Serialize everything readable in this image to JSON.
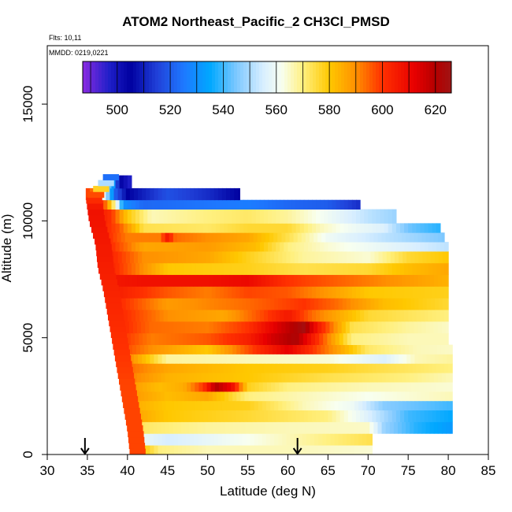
{
  "chart_data": {
    "type": "heatmap",
    "title": "ATOM2 Northeast_Pacific_2 CH3Cl_PMSD",
    "flights_label": "Flts: 10,11",
    "mmdd_label": "MMDD: 0219,0221",
    "xlabel": "Latitude (deg N)",
    "ylabel": "Altitude (m)",
    "xlim": [
      30,
      85
    ],
    "ylim": [
      0,
      17500
    ],
    "xticks": [
      30,
      35,
      40,
      45,
      50,
      55,
      60,
      65,
      70,
      75,
      80,
      85
    ],
    "yticks": [
      0,
      5000,
      10000,
      15000
    ],
    "colorbar": {
      "range": [
        487,
        626
      ],
      "ticks": [
        500,
        520,
        540,
        560,
        580,
        600,
        620
      ],
      "stops": [
        {
          "v": 487,
          "c": "#8a2be2"
        },
        {
          "v": 497,
          "c": "#1f1fc8"
        },
        {
          "v": 505,
          "c": "#0000a0"
        },
        {
          "v": 515,
          "c": "#2040d8"
        },
        {
          "v": 525,
          "c": "#1e78ff"
        },
        {
          "v": 535,
          "c": "#00a8ff"
        },
        {
          "v": 545,
          "c": "#7ec8ff"
        },
        {
          "v": 555,
          "c": "#d8eeff"
        },
        {
          "v": 562,
          "c": "#f8fff0"
        },
        {
          "v": 570,
          "c": "#fff080"
        },
        {
          "v": 580,
          "c": "#ffc800"
        },
        {
          "v": 590,
          "c": "#ff9000"
        },
        {
          "v": 600,
          "c": "#ff3000"
        },
        {
          "v": 612,
          "c": "#e80000"
        },
        {
          "v": 620,
          "c": "#b40000"
        },
        {
          "v": 626,
          "c": "#a01414"
        }
      ]
    },
    "edge": [
      [
        0,
        40.3
      ],
      [
        1000,
        40.0
      ],
      [
        2000,
        39.5
      ],
      [
        3000,
        39.0
      ],
      [
        4000,
        38.5
      ],
      [
        5000,
        38.0
      ],
      [
        6000,
        37.5
      ],
      [
        7000,
        37.0
      ],
      [
        8000,
        36.3
      ],
      [
        9000,
        36.0
      ],
      [
        10000,
        35.2
      ],
      [
        11000,
        34.8
      ],
      [
        11900,
        37.0
      ]
    ],
    "edge_values": [
      [
        0,
        598
      ],
      [
        3000,
        598
      ],
      [
        6000,
        602
      ],
      [
        9000,
        606
      ],
      [
        10500,
        608
      ],
      [
        11200,
        596
      ],
      [
        12000,
        510
      ]
    ],
    "bands": [
      {
        "y0": 0,
        "y1": 400,
        "x1": 70.5,
        "v": [
          [
            40.3,
            598
          ],
          [
            41,
            585
          ],
          [
            44,
            570
          ],
          [
            50,
            566
          ],
          [
            60,
            566
          ],
          [
            70.5,
            564
          ]
        ]
      },
      {
        "y0": 400,
        "y1": 900,
        "x1": 70.5,
        "v": [
          [
            40.3,
            598
          ],
          [
            41,
            560
          ],
          [
            45,
            555
          ],
          [
            55,
            562
          ],
          [
            65,
            570
          ],
          [
            70.5,
            574
          ]
        ]
      },
      {
        "y0": 900,
        "y1": 1400,
        "x1": 80.5,
        "v": [
          [
            40.2,
            592
          ],
          [
            42,
            572
          ],
          [
            50,
            568
          ],
          [
            60,
            566
          ],
          [
            70,
            565
          ],
          [
            72,
            548
          ],
          [
            76,
            538
          ],
          [
            80.5,
            532
          ]
        ]
      },
      {
        "y0": 1400,
        "y1": 1900,
        "x1": 80.5,
        "v": [
          [
            40.0,
            588
          ],
          [
            45,
            580
          ],
          [
            55,
            576
          ],
          [
            65,
            570
          ],
          [
            70,
            556
          ],
          [
            75,
            540
          ],
          [
            80.5,
            535
          ]
        ]
      },
      {
        "y0": 1900,
        "y1": 2300,
        "x1": 80.5,
        "v": [
          [
            39.8,
            586
          ],
          [
            45,
            580
          ],
          [
            55,
            578
          ],
          [
            62,
            566
          ],
          [
            68,
            560
          ],
          [
            72,
            546
          ],
          [
            80.5,
            540
          ]
        ]
      },
      {
        "y0": 2300,
        "y1": 2700,
        "x1": 80.5,
        "v": [
          [
            39.6,
            590
          ],
          [
            45,
            582
          ],
          [
            50,
            586
          ],
          [
            55,
            570
          ],
          [
            62,
            566
          ],
          [
            70,
            562
          ],
          [
            80.5,
            566
          ]
        ]
      },
      {
        "y0": 2700,
        "y1": 3100,
        "x1": 80.5,
        "v": [
          [
            39.4,
            590
          ],
          [
            44,
            582
          ],
          [
            47,
            585
          ],
          [
            49.5,
            600
          ],
          [
            51,
            620
          ],
          [
            53,
            610
          ],
          [
            55,
            578
          ],
          [
            60,
            570
          ],
          [
            70,
            566
          ],
          [
            80.5,
            564
          ]
        ]
      },
      {
        "y0": 3100,
        "y1": 3500,
        "x1": 80.5,
        "v": [
          [
            39.2,
            594
          ],
          [
            45,
            584
          ],
          [
            55,
            580
          ],
          [
            65,
            574
          ],
          [
            75,
            570
          ],
          [
            80.5,
            566
          ]
        ]
      },
      {
        "y0": 3500,
        "y1": 3900,
        "x1": 80.5,
        "v": [
          [
            39.0,
            596
          ],
          [
            45,
            586
          ],
          [
            55,
            580
          ],
          [
            65,
            578
          ],
          [
            72,
            574
          ],
          [
            80.5,
            570
          ]
        ]
      },
      {
        "y0": 3900,
        "y1": 4300,
        "x1": 80.5,
        "v": [
          [
            38.8,
            598
          ],
          [
            45,
            568
          ],
          [
            55,
            566
          ],
          [
            65,
            564
          ],
          [
            72,
            556
          ],
          [
            76,
            566
          ],
          [
            80.5,
            568
          ]
        ]
      },
      {
        "y0": 4300,
        "y1": 4700,
        "x1": 80.5,
        "v": [
          [
            38.6,
            600
          ],
          [
            43,
            590
          ],
          [
            50,
            580
          ],
          [
            56,
            600
          ],
          [
            60,
            612
          ],
          [
            64,
            596
          ],
          [
            70,
            572
          ],
          [
            76,
            566
          ],
          [
            80.5,
            565
          ]
        ]
      },
      {
        "y0": 4700,
        "y1": 5200,
        "x1": 80,
        "v": [
          [
            38.4,
            602
          ],
          [
            43,
            592
          ],
          [
            50,
            596
          ],
          [
            55,
            604
          ],
          [
            58,
            615
          ],
          [
            61,
            622
          ],
          [
            63,
            606
          ],
          [
            68,
            570
          ],
          [
            75,
            566
          ],
          [
            80,
            566
          ]
        ]
      },
      {
        "y0": 5200,
        "y1": 5700,
        "x1": 80,
        "v": [
          [
            38.2,
            604
          ],
          [
            43,
            594
          ],
          [
            50,
            592
          ],
          [
            55,
            600
          ],
          [
            59,
            615
          ],
          [
            62,
            624
          ],
          [
            64,
            604
          ],
          [
            68,
            574
          ],
          [
            75,
            568
          ],
          [
            80,
            565
          ]
        ]
      },
      {
        "y0": 5700,
        "y1": 6200,
        "x1": 80,
        "v": [
          [
            38.0,
            604
          ],
          [
            45,
            590
          ],
          [
            52,
            586
          ],
          [
            57,
            598
          ],
          [
            60,
            606
          ],
          [
            63,
            594
          ],
          [
            70,
            576
          ],
          [
            80,
            570
          ]
        ]
      },
      {
        "y0": 6200,
        "y1": 6700,
        "x1": 80,
        "v": [
          [
            37.8,
            604
          ],
          [
            45,
            588
          ],
          [
            55,
            594
          ],
          [
            62,
            600
          ],
          [
            66,
            594
          ],
          [
            72,
            582
          ],
          [
            80,
            576
          ]
        ]
      },
      {
        "y0": 6700,
        "y1": 7200,
        "x1": 80,
        "v": [
          [
            37.5,
            606
          ],
          [
            42,
            600
          ],
          [
            45,
            596
          ],
          [
            50,
            592
          ],
          [
            55,
            598
          ],
          [
            60,
            596
          ],
          [
            64,
            590
          ],
          [
            70,
            580
          ],
          [
            80,
            578
          ]
        ]
      },
      {
        "y0": 7200,
        "y1": 7700,
        "x1": 80,
        "v": [
          [
            37.2,
            606
          ],
          [
            42,
            608
          ],
          [
            50,
            608
          ],
          [
            55,
            610
          ],
          [
            60,
            600
          ],
          [
            65,
            596
          ],
          [
            70,
            592
          ],
          [
            80,
            584
          ]
        ]
      },
      {
        "y0": 7700,
        "y1": 8200,
        "x1": 80,
        "v": [
          [
            37.0,
            606
          ],
          [
            45,
            580
          ],
          [
            55,
            578
          ],
          [
            62,
            574
          ],
          [
            70,
            576
          ],
          [
            75,
            582
          ],
          [
            80,
            586
          ]
        ]
      },
      {
        "y0": 8200,
        "y1": 8700,
        "x1": 80,
        "v": [
          [
            36.8,
            606
          ],
          [
            42,
            590
          ],
          [
            50,
            586
          ],
          [
            55,
            578
          ],
          [
            62,
            568
          ],
          [
            70,
            564
          ],
          [
            75,
            576
          ],
          [
            80,
            580
          ]
        ]
      },
      {
        "y0": 8700,
        "y1": 9100,
        "x1": 80,
        "v": [
          [
            36.5,
            606
          ],
          [
            42,
            586
          ],
          [
            50,
            588
          ],
          [
            56,
            582
          ],
          [
            60,
            570
          ],
          [
            65,
            564
          ],
          [
            70,
            560
          ],
          [
            80,
            552
          ]
        ]
      },
      {
        "y0": 9100,
        "y1": 9500,
        "x1": 79.5,
        "v": [
          [
            36.2,
            606
          ],
          [
            40,
            592
          ],
          [
            44,
            592
          ],
          [
            45,
            606
          ],
          [
            46,
            594
          ],
          [
            50,
            590
          ],
          [
            55,
            586
          ],
          [
            60,
            574
          ],
          [
            65,
            560
          ],
          [
            72,
            552
          ],
          [
            79.5,
            545
          ]
        ]
      },
      {
        "y0": 9500,
        "y1": 9900,
        "x1": 79,
        "v": [
          [
            36.0,
            606
          ],
          [
            39,
            596
          ],
          [
            42,
            574
          ],
          [
            50,
            572
          ],
          [
            55,
            576
          ],
          [
            60,
            576
          ],
          [
            64,
            566
          ],
          [
            68,
            560
          ],
          [
            72,
            556
          ],
          [
            75,
            544
          ],
          [
            79,
            538
          ]
        ]
      },
      {
        "y0": 9900,
        "y1": 10500,
        "x1": 73.5,
        "v": [
          [
            35.5,
            608
          ],
          [
            38,
            600
          ],
          [
            40,
            580
          ],
          [
            43,
            566
          ],
          [
            50,
            570
          ],
          [
            55,
            572
          ],
          [
            60,
            568
          ],
          [
            65,
            560
          ],
          [
            70,
            552
          ],
          [
            73.5,
            548
          ]
        ]
      },
      {
        "y0": 10500,
        "y1": 10900,
        "x1": 69,
        "v": [
          [
            35.0,
            606
          ],
          [
            37,
            600
          ],
          [
            38.5,
            566
          ],
          [
            39.5,
            530
          ],
          [
            42,
            522
          ],
          [
            48,
            524
          ],
          [
            55,
            526
          ],
          [
            60,
            522
          ],
          [
            65,
            520
          ],
          [
            69,
            512
          ]
        ]
      },
      {
        "y0": 10900,
        "y1": 11400,
        "x1": 54,
        "v": [
          [
            34.8,
            600
          ],
          [
            36,
            590
          ],
          [
            37,
            560
          ],
          [
            38.5,
            520
          ],
          [
            40,
            505
          ],
          [
            45,
            518
          ],
          [
            50,
            512
          ],
          [
            54,
            505
          ]
        ]
      },
      {
        "y0": 11400,
        "y1": 11950,
        "x1": 40.5,
        "v": [
          [
            37.0,
            548
          ],
          [
            38,
            540
          ],
          [
            39,
            505
          ],
          [
            40.5,
            496
          ]
        ]
      }
    ],
    "annotations": [
      {
        "type": "arrow",
        "x": 34.7,
        "label": ""
      },
      {
        "type": "arrow",
        "x": 61.2,
        "label": ""
      }
    ]
  }
}
